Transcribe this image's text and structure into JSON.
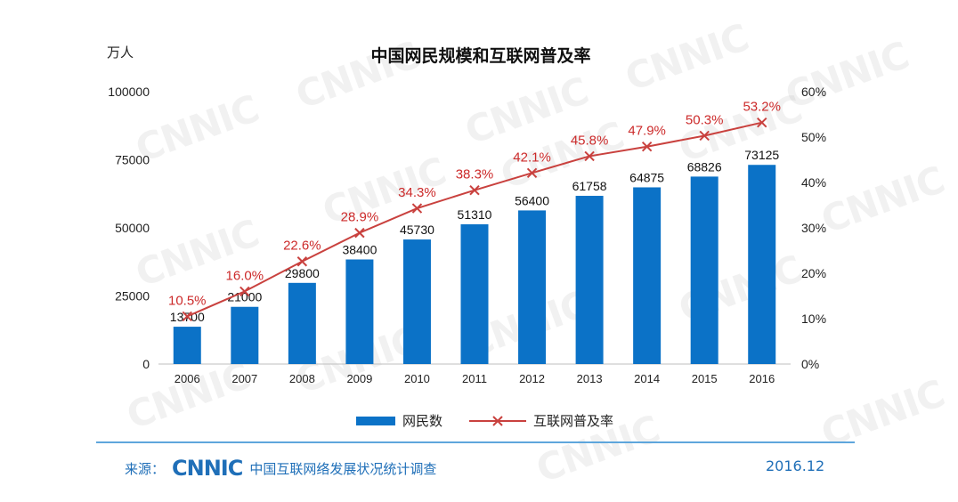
{
  "header": {
    "title": "中国网民规模和互联网普及率",
    "y_unit": "万人"
  },
  "chart_data": {
    "type": "bar",
    "categories": [
      "2006",
      "2007",
      "2008",
      "2009",
      "2010",
      "2011",
      "2012",
      "2013",
      "2014",
      "2015",
      "2016"
    ],
    "series": [
      {
        "name": "网民数",
        "type": "bar",
        "axis": "left",
        "values": [
          13700,
          21000,
          29800,
          38400,
          45730,
          51310,
          56400,
          61758,
          64875,
          68826,
          73125
        ],
        "labels": [
          "13700",
          "21000",
          "29800",
          "38400",
          "45730",
          "51310",
          "56400",
          "61758",
          "64875",
          "68826",
          "73125"
        ]
      },
      {
        "name": "互联网普及率",
        "type": "line",
        "axis": "right",
        "values": [
          10.5,
          16.0,
          22.6,
          28.9,
          34.3,
          38.3,
          42.1,
          45.8,
          47.9,
          50.3,
          53.2
        ],
        "labels": [
          "10.5%",
          "16.0%",
          "22.6%",
          "28.9%",
          "34.3%",
          "38.3%",
          "42.1%",
          "45.8%",
          "47.9%",
          "50.3%",
          "53.2%"
        ]
      }
    ],
    "y_left": {
      "ylim": [
        0,
        100000
      ],
      "ticks": [
        "0",
        "25000",
        "50000",
        "75000",
        "100000"
      ]
    },
    "y_right": {
      "ylim": [
        0,
        60
      ],
      "ticks": [
        "0%",
        "10%",
        "20%",
        "30%",
        "40%",
        "50%",
        "60%"
      ]
    },
    "grid": false,
    "legend_position": "bottom-center",
    "colors": {
      "bar": "#0b72c7",
      "line": "#c9413e",
      "line_label": "#cc2a2a"
    }
  },
  "footer": {
    "source_label": "来源：",
    "logo": "CNNIC",
    "source_text": "中国互联网络发展状况统计调查",
    "date": "2016.12"
  },
  "watermark": "CNNIC"
}
